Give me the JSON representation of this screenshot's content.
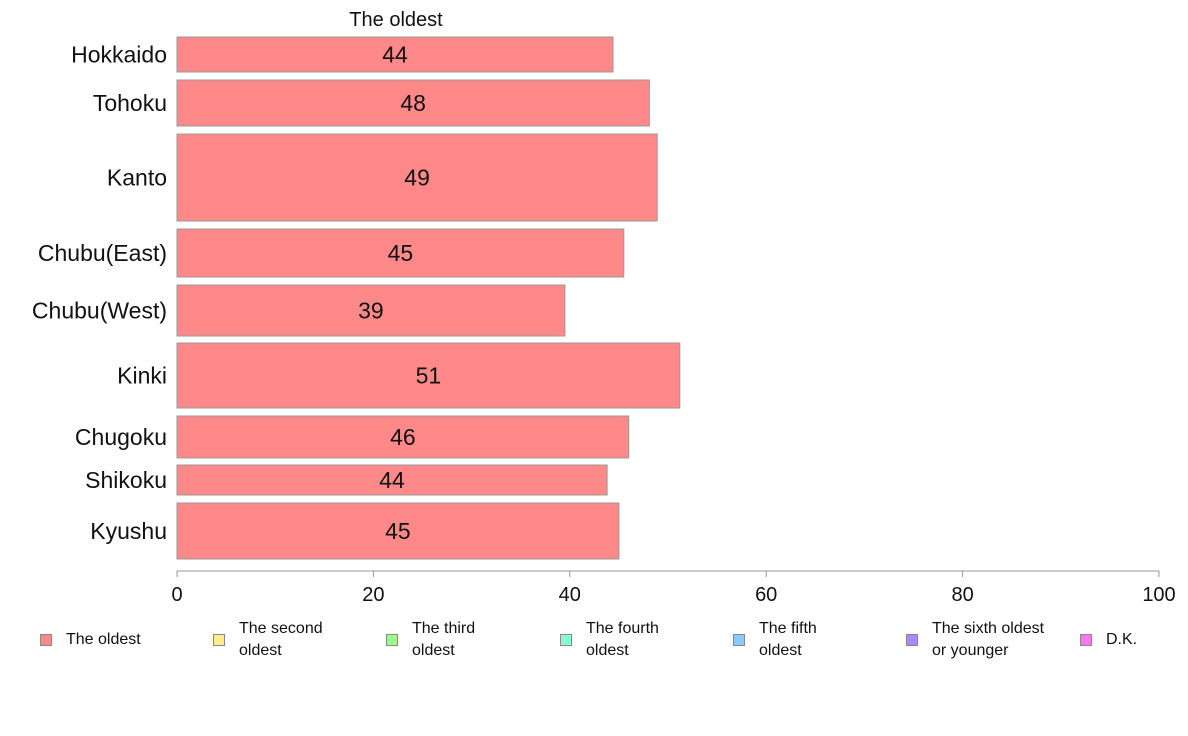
{
  "chart_data": {
    "type": "bar",
    "orientation": "horizontal",
    "stacked": true,
    "title": "The oldest",
    "categories": [
      "Hokkaido",
      "Tohoku",
      "Kanto",
      "Chubu(East)",
      "Chubu(West)",
      "Kinki",
      "Chugoku",
      "Shikoku",
      "Kyushu"
    ],
    "series": [
      {
        "name": "The oldest",
        "color": "#ff8888",
        "values": [
          44.4,
          48.1,
          48.9,
          45.5,
          39.5,
          51.2,
          46.0,
          43.8,
          45.0
        ],
        "labels": [
          "44",
          "48",
          "49",
          "45",
          "39",
          "51",
          "46",
          "44",
          "45"
        ]
      }
    ],
    "xlim": [
      0,
      100
    ],
    "xticks": [
      "0",
      "20",
      "40",
      "60",
      "80",
      "100"
    ],
    "xtick_values": [
      0,
      20,
      40,
      60,
      80,
      100
    ],
    "grid": false,
    "legend_position": "bottom"
  },
  "legend": [
    {
      "label": "The oldest",
      "color": "#ff8888"
    },
    {
      "label": "The second\noldest",
      "color": "#ffee88"
    },
    {
      "label": "The third\noldest",
      "color": "#99ff88"
    },
    {
      "label": "The fourth\noldest",
      "color": "#88ffcc"
    },
    {
      "label": "The fifth\noldest",
      "color": "#88ccff"
    },
    {
      "label": "The sixth oldest\nor younger",
      "color": "#aa88ff"
    },
    {
      "label": "D.K.",
      "color": "#ff77ee"
    }
  ]
}
